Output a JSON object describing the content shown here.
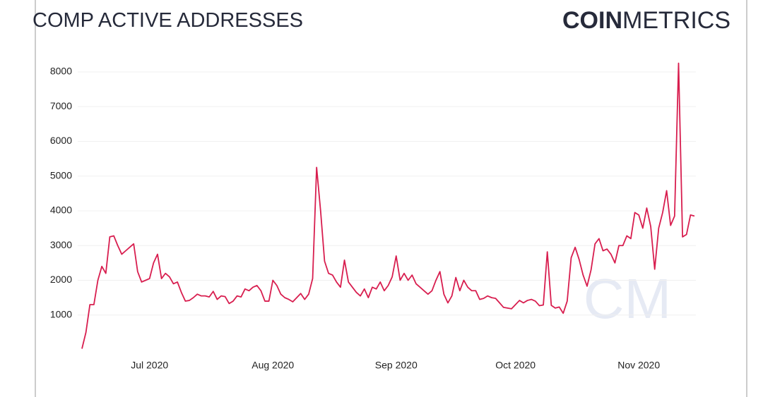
{
  "chart_data": {
    "type": "line",
    "title": "COMP ACTIVE ADDRESSES",
    "brand": {
      "bold": "COIN",
      "light": "METRICS",
      "watermark": "CM"
    },
    "categories": [
      null,
      null,
      null,
      null,
      null,
      null,
      null,
      null,
      null,
      null,
      null,
      null,
      null,
      null,
      null,
      null,
      null,
      "Jul 2020",
      null,
      null,
      null,
      null,
      null,
      null,
      null,
      null,
      null,
      null,
      null,
      null,
      null,
      null,
      null,
      null,
      null,
      null,
      null,
      null,
      null,
      null,
      null,
      null,
      null,
      null,
      null,
      null,
      null,
      null,
      "Aug 2020",
      null,
      null,
      null,
      null,
      null,
      null,
      null,
      null,
      null,
      null,
      null,
      null,
      null,
      null,
      null,
      null,
      null,
      null,
      null,
      null,
      null,
      null,
      null,
      null,
      null,
      null,
      null,
      null,
      null,
      null,
      "Sep 2020",
      null,
      null,
      null,
      null,
      null,
      null,
      null,
      null,
      null,
      null,
      null,
      null,
      null,
      null,
      null,
      null,
      null,
      null,
      null,
      null,
      null,
      null,
      null,
      null,
      null,
      null,
      null,
      null,
      null,
      "Oct 2020",
      null,
      null,
      null,
      null,
      null,
      null,
      null,
      null,
      null,
      null,
      null,
      null,
      null,
      null,
      null,
      null,
      null,
      null,
      null,
      null,
      null,
      null,
      null,
      null,
      null,
      null,
      null,
      null,
      null,
      null,
      "Nov 2020",
      null,
      null,
      null,
      null,
      null,
      null,
      null,
      null,
      null,
      null,
      null,
      null,
      null,
      null
    ],
    "series": [
      {
        "name": "COMP active addresses",
        "color": "#d81e4f",
        "values": [
          30,
          500,
          1300,
          1300,
          2000,
          2400,
          2200,
          3250,
          3280,
          3000,
          2750,
          2850,
          2950,
          3050,
          2250,
          1950,
          2000,
          2050,
          2500,
          2750,
          2050,
          2200,
          2100,
          1900,
          1950,
          1650,
          1400,
          1420,
          1500,
          1600,
          1550,
          1550,
          1520,
          1680,
          1450,
          1550,
          1530,
          1330,
          1400,
          1550,
          1520,
          1750,
          1700,
          1800,
          1850,
          1700,
          1400,
          1400,
          2000,
          1850,
          1600,
          1500,
          1450,
          1380,
          1500,
          1620,
          1450,
          1600,
          2050,
          5250,
          4000,
          2550,
          2200,
          2150,
          1950,
          1800,
          2580,
          1950,
          1800,
          1650,
          1550,
          1750,
          1500,
          1800,
          1750,
          1950,
          1700,
          1850,
          2100,
          2700,
          2000,
          2200,
          2000,
          2150,
          1900,
          1800,
          1700,
          1600,
          1700,
          2000,
          2250,
          1600,
          1350,
          1550,
          2080,
          1700,
          2000,
          1800,
          1700,
          1700,
          1450,
          1480,
          1550,
          1500,
          1480,
          1350,
          1220,
          1200,
          1180,
          1300,
          1420,
          1350,
          1420,
          1450,
          1400,
          1270,
          1290,
          2820,
          1280,
          1200,
          1230,
          1050,
          1400,
          2650,
          2950,
          2600,
          2150,
          1830,
          2300,
          3050,
          3200,
          2850,
          2900,
          2750,
          2500,
          3000,
          3000,
          3280,
          3200,
          3950,
          3880,
          3500,
          4080,
          3550,
          2320,
          3500,
          3950,
          4580,
          3580,
          3850,
          8250,
          3250,
          3320,
          3880,
          3850
        ]
      }
    ],
    "ylim": [
      0,
      8300
    ],
    "yticks": [
      1000,
      2000,
      3000,
      4000,
      5000,
      6000,
      7000,
      8000
    ],
    "grid": true
  }
}
